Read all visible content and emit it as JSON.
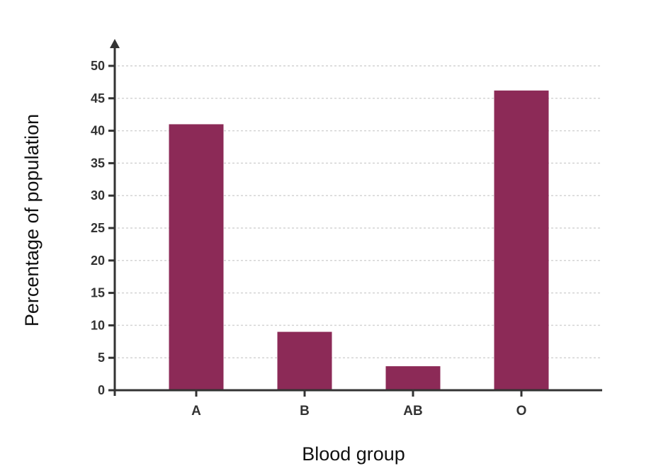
{
  "chart_data": {
    "type": "bar",
    "title": "",
    "xlabel": "Blood group",
    "ylabel": "Percentage of population",
    "categories": [
      "A",
      "B",
      "AB",
      "O"
    ],
    "values": [
      41,
      9,
      3.7,
      46.2
    ],
    "ylim": [
      0,
      50
    ],
    "yticks": [
      "0",
      "5",
      "10",
      "15",
      "20",
      "25",
      "30",
      "35",
      "40",
      "45",
      "50"
    ],
    "grid": true,
    "bar_color": "#8c2a57",
    "grid_color": "#d4d4d4",
    "axis_color": "#333333"
  }
}
